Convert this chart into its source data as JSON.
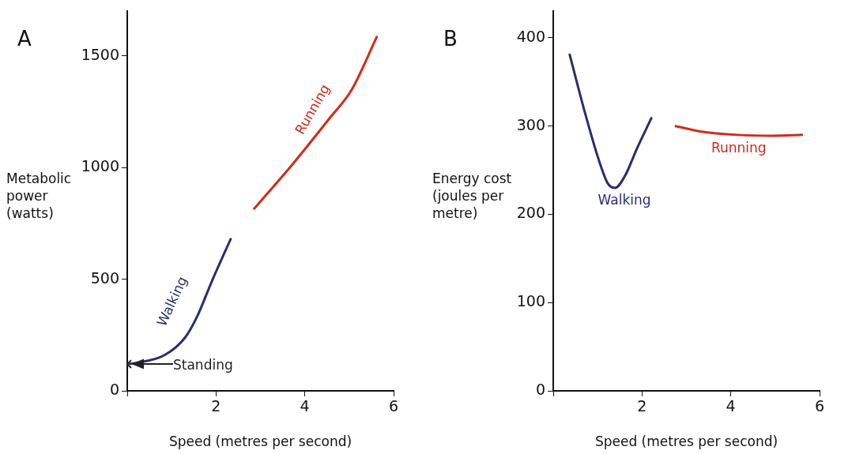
{
  "chart_data": [
    {
      "type": "line",
      "title": "A",
      "xlabel": "Speed (metres per second)",
      "ylabel": "Metabolic power (watts)",
      "xlim": [
        0,
        6
      ],
      "xticks": [
        {
          "value": 0,
          "label": null
        },
        2,
        4,
        6
      ],
      "ylim": [
        0,
        1700
      ],
      "yticks": [
        0,
        500,
        1000,
        1500
      ],
      "grid": false,
      "series": [
        {
          "name": "Walking",
          "color": "#2b2d6e",
          "x": [
            0,
            0.2,
            0.84,
            1.3,
            1.57,
            1.9,
            2.33
          ],
          "values": [
            120,
            125,
            160,
            238,
            331,
            488,
            680
          ]
        },
        {
          "name": "Running",
          "color": "#d42a1a",
          "x": [
            2.86,
            3.74,
            4.59,
            5.05,
            5.62
          ],
          "values": [
            816,
            1019,
            1229,
            1347,
            1585
          ]
        },
        {
          "name": "Standing",
          "type": "scatter",
          "marker": "cross",
          "color": "#222222",
          "x": [
            0
          ],
          "values": [
            120
          ]
        }
      ]
    },
    {
      "type": "line",
      "title": "B",
      "xlabel": "Speed (metres per second)",
      "ylabel": "Energy cost (joules per metre)",
      "xlim": [
        0,
        6
      ],
      "xticks": [
        {
          "value": 0,
          "label": null
        },
        2,
        4,
        6
      ],
      "ylim": [
        0,
        430
      ],
      "yticks": [
        0,
        100,
        200,
        300,
        400
      ],
      "grid": false,
      "series": [
        {
          "name": "Walking",
          "color": "#2b2d6e",
          "x": [
            0.37,
            0.71,
            1.03,
            1.23,
            1.39,
            1.62,
            1.88,
            2.21
          ],
          "values": [
            381,
            316,
            261,
            235,
            230,
            244,
            274,
            309
          ]
        },
        {
          "name": "Running",
          "color": "#d42a1a",
          "x": [
            2.76,
            3.31,
            4.17,
            4.95,
            5.6
          ],
          "values": [
            300,
            294,
            290,
            289,
            290
          ]
        }
      ]
    }
  ]
}
